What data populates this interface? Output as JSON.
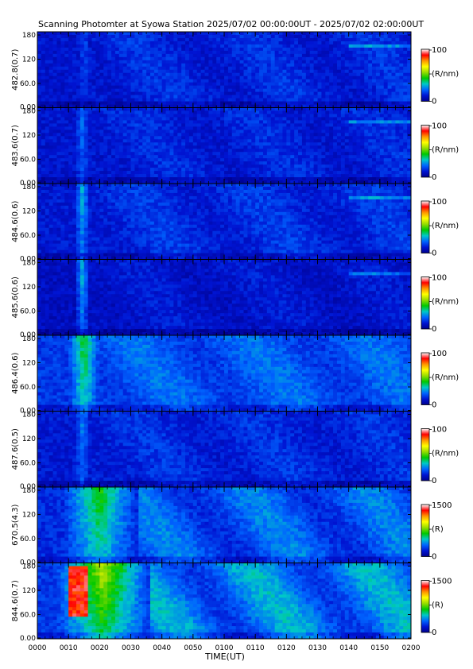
{
  "page": {
    "title": "Scanning Photomter at Syowa Station  2025/07/02 00:00:00UT - 2025/07/02 02:00:00UT",
    "xlabel": "TIME(UT)"
  },
  "colors": {
    "background": "#ffffff",
    "frame": "#000000",
    "low": "#0a1ea6",
    "mid": "#26c840",
    "high": "#e81010"
  },
  "chart_data": {
    "type": "heatmap",
    "x_ticks": [
      "0000",
      "0010",
      "0020",
      "0030",
      "0040",
      "0050",
      "0100",
      "0110",
      "0120",
      "0130",
      "0140",
      "0150",
      "0200"
    ],
    "x_range_minutes": [
      0,
      120
    ],
    "y_ticks": [
      "0.00",
      "60.0",
      "120",
      "180"
    ],
    "y_range": [
      0,
      180
    ],
    "colorscale": [
      "#00008c",
      "#0014d2",
      "#0064ff",
      "#00c8c8",
      "#00c800",
      "#96dc00",
      "#ffff00",
      "#ff9600",
      "#ff0000",
      "#ffffff"
    ],
    "panels": [
      {
        "channel": "482.8(0.7)",
        "cb_top": "100",
        "cb_mid": "(R/nm)",
        "cb_bot": "0",
        "vmax": 100,
        "base": 0.1,
        "bright_band": [
          13,
          17
        ],
        "bright_level": 0.08,
        "later_level": 0.06,
        "red_spot": false,
        "high_streak": true
      },
      {
        "channel": "483.6(0.7)",
        "cb_top": "100",
        "cb_mid": "(R/nm)",
        "cb_bot": "0",
        "vmax": 100,
        "base": 0.1,
        "bright_band": [
          12,
          17
        ],
        "bright_level": 0.12,
        "later_level": 0.05,
        "red_spot": false,
        "high_streak": true
      },
      {
        "channel": "484.6(0.6)",
        "cb_top": "100",
        "cb_mid": "(R/nm)",
        "cb_bot": "0",
        "vmax": 100,
        "base": 0.11,
        "bright_band": [
          12,
          17
        ],
        "bright_level": 0.18,
        "later_level": 0.06,
        "red_spot": false,
        "high_streak": true
      },
      {
        "channel": "485.6(0.6)",
        "cb_top": "100",
        "cb_mid": "(R/nm)",
        "cb_bot": "0",
        "vmax": 100,
        "base": 0.08,
        "bright_band": [
          12,
          17
        ],
        "bright_level": 0.22,
        "later_level": 0.04,
        "red_spot": false,
        "high_streak": true
      },
      {
        "channel": "486.4(0.6)",
        "cb_top": "100",
        "cb_mid": "(R/nm)",
        "cb_bot": "0",
        "vmax": 100,
        "base": 0.16,
        "bright_band": [
          10,
          20
        ],
        "bright_level": 0.26,
        "later_level": 0.08,
        "red_spot": false,
        "high_streak": false
      },
      {
        "channel": "487.6(0.5)",
        "cb_top": "100",
        "cb_mid": "(R/nm)",
        "cb_bot": "0",
        "vmax": 100,
        "base": 0.11,
        "bright_band": [
          12,
          17
        ],
        "bright_level": 0.13,
        "later_level": 0.05,
        "red_spot": false,
        "high_streak": false
      },
      {
        "channel": "670.5(4.3)",
        "cb_top": "1500",
        "cb_mid": "(R)",
        "cb_bot": "0",
        "vmax": 1500,
        "base": 0.14,
        "bright_band": [
          8,
          32
        ],
        "bright_level": 0.3,
        "later_level": 0.12,
        "red_spot": false,
        "high_streak": false
      },
      {
        "channel": "844.6(0.7)",
        "cb_top": "1500",
        "cb_mid": "(R)",
        "cb_bot": "0",
        "vmax": 1500,
        "base": 0.16,
        "bright_band": [
          6,
          36
        ],
        "bright_level": 0.4,
        "later_level": 0.16,
        "red_spot": true,
        "high_streak": false
      }
    ]
  }
}
